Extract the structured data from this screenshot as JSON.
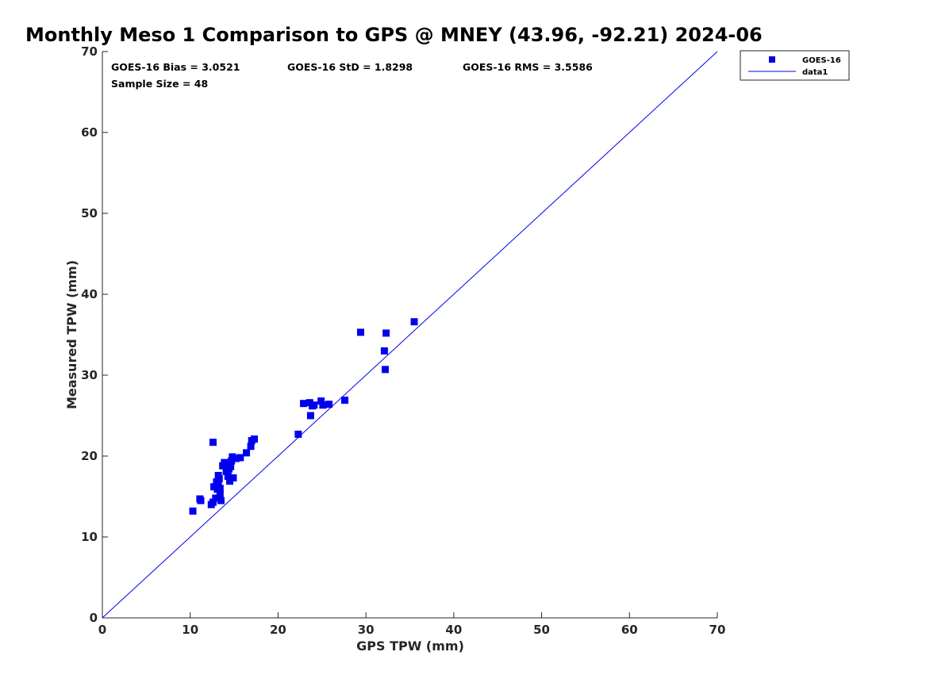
{
  "chart_data": {
    "type": "scatter",
    "title": "Monthly Meso 1 Comparison to GPS @ MNEY (43.96, -92.21) 2024-06",
    "xlabel": "GPS TPW (mm)",
    "ylabel": "Measured TPW (mm)",
    "xlim": [
      0,
      70
    ],
    "ylim": [
      0,
      70
    ],
    "xticks": [
      0,
      10,
      20,
      30,
      40,
      50,
      60,
      70
    ],
    "yticks": [
      0,
      10,
      20,
      30,
      40,
      50,
      60,
      70
    ],
    "grid": false,
    "legend_position": "outside-top-right",
    "stats": {
      "bias": "GOES-16 Bias = 3.0521",
      "std": "GOES-16 StD = 1.8298",
      "rms": "GOES-16 RMS = 3.5586",
      "sample": "Sample Size = 48"
    },
    "series": [
      {
        "name": "GOES-16",
        "kind": "scatter",
        "marker": "square",
        "color": "#0000ee",
        "points": [
          [
            10.3,
            13.2
          ],
          [
            11.1,
            14.7
          ],
          [
            11.2,
            14.5
          ],
          [
            12.4,
            14.0
          ],
          [
            12.6,
            14.3
          ],
          [
            12.6,
            21.7
          ],
          [
            12.7,
            16.2
          ],
          [
            12.9,
            14.8
          ],
          [
            13.0,
            16.8
          ],
          [
            13.1,
            15.9
          ],
          [
            13.2,
            17.6
          ],
          [
            13.3,
            17.2
          ],
          [
            13.4,
            16.0
          ],
          [
            13.4,
            15.3
          ],
          [
            13.5,
            14.5
          ],
          [
            13.7,
            18.8
          ],
          [
            13.9,
            19.2
          ],
          [
            14.1,
            18.1
          ],
          [
            14.2,
            19.0
          ],
          [
            14.3,
            17.5
          ],
          [
            14.5,
            16.9
          ],
          [
            14.6,
            18.7
          ],
          [
            14.7,
            19.4
          ],
          [
            14.8,
            19.9
          ],
          [
            14.9,
            17.3
          ],
          [
            15.2,
            19.7
          ],
          [
            15.7,
            19.8
          ],
          [
            16.4,
            20.4
          ],
          [
            16.9,
            21.2
          ],
          [
            17.0,
            21.9
          ],
          [
            17.3,
            22.1
          ],
          [
            22.3,
            22.7
          ],
          [
            22.9,
            26.5
          ],
          [
            23.6,
            26.6
          ],
          [
            23.7,
            25.0
          ],
          [
            23.9,
            26.2
          ],
          [
            24.1,
            26.3
          ],
          [
            24.9,
            26.8
          ],
          [
            25.1,
            26.3
          ],
          [
            25.8,
            26.4
          ],
          [
            27.6,
            26.9
          ],
          [
            29.4,
            35.3
          ],
          [
            32.1,
            33.0
          ],
          [
            32.2,
            30.7
          ],
          [
            32.3,
            35.2
          ],
          [
            35.5,
            36.6
          ],
          [
            14.4,
            18.4
          ],
          [
            13.2,
            16.4
          ]
        ]
      },
      {
        "name": "data1",
        "kind": "line",
        "color": "#0000ee",
        "points": [
          [
            0,
            0
          ],
          [
            70,
            70
          ]
        ]
      }
    ]
  }
}
